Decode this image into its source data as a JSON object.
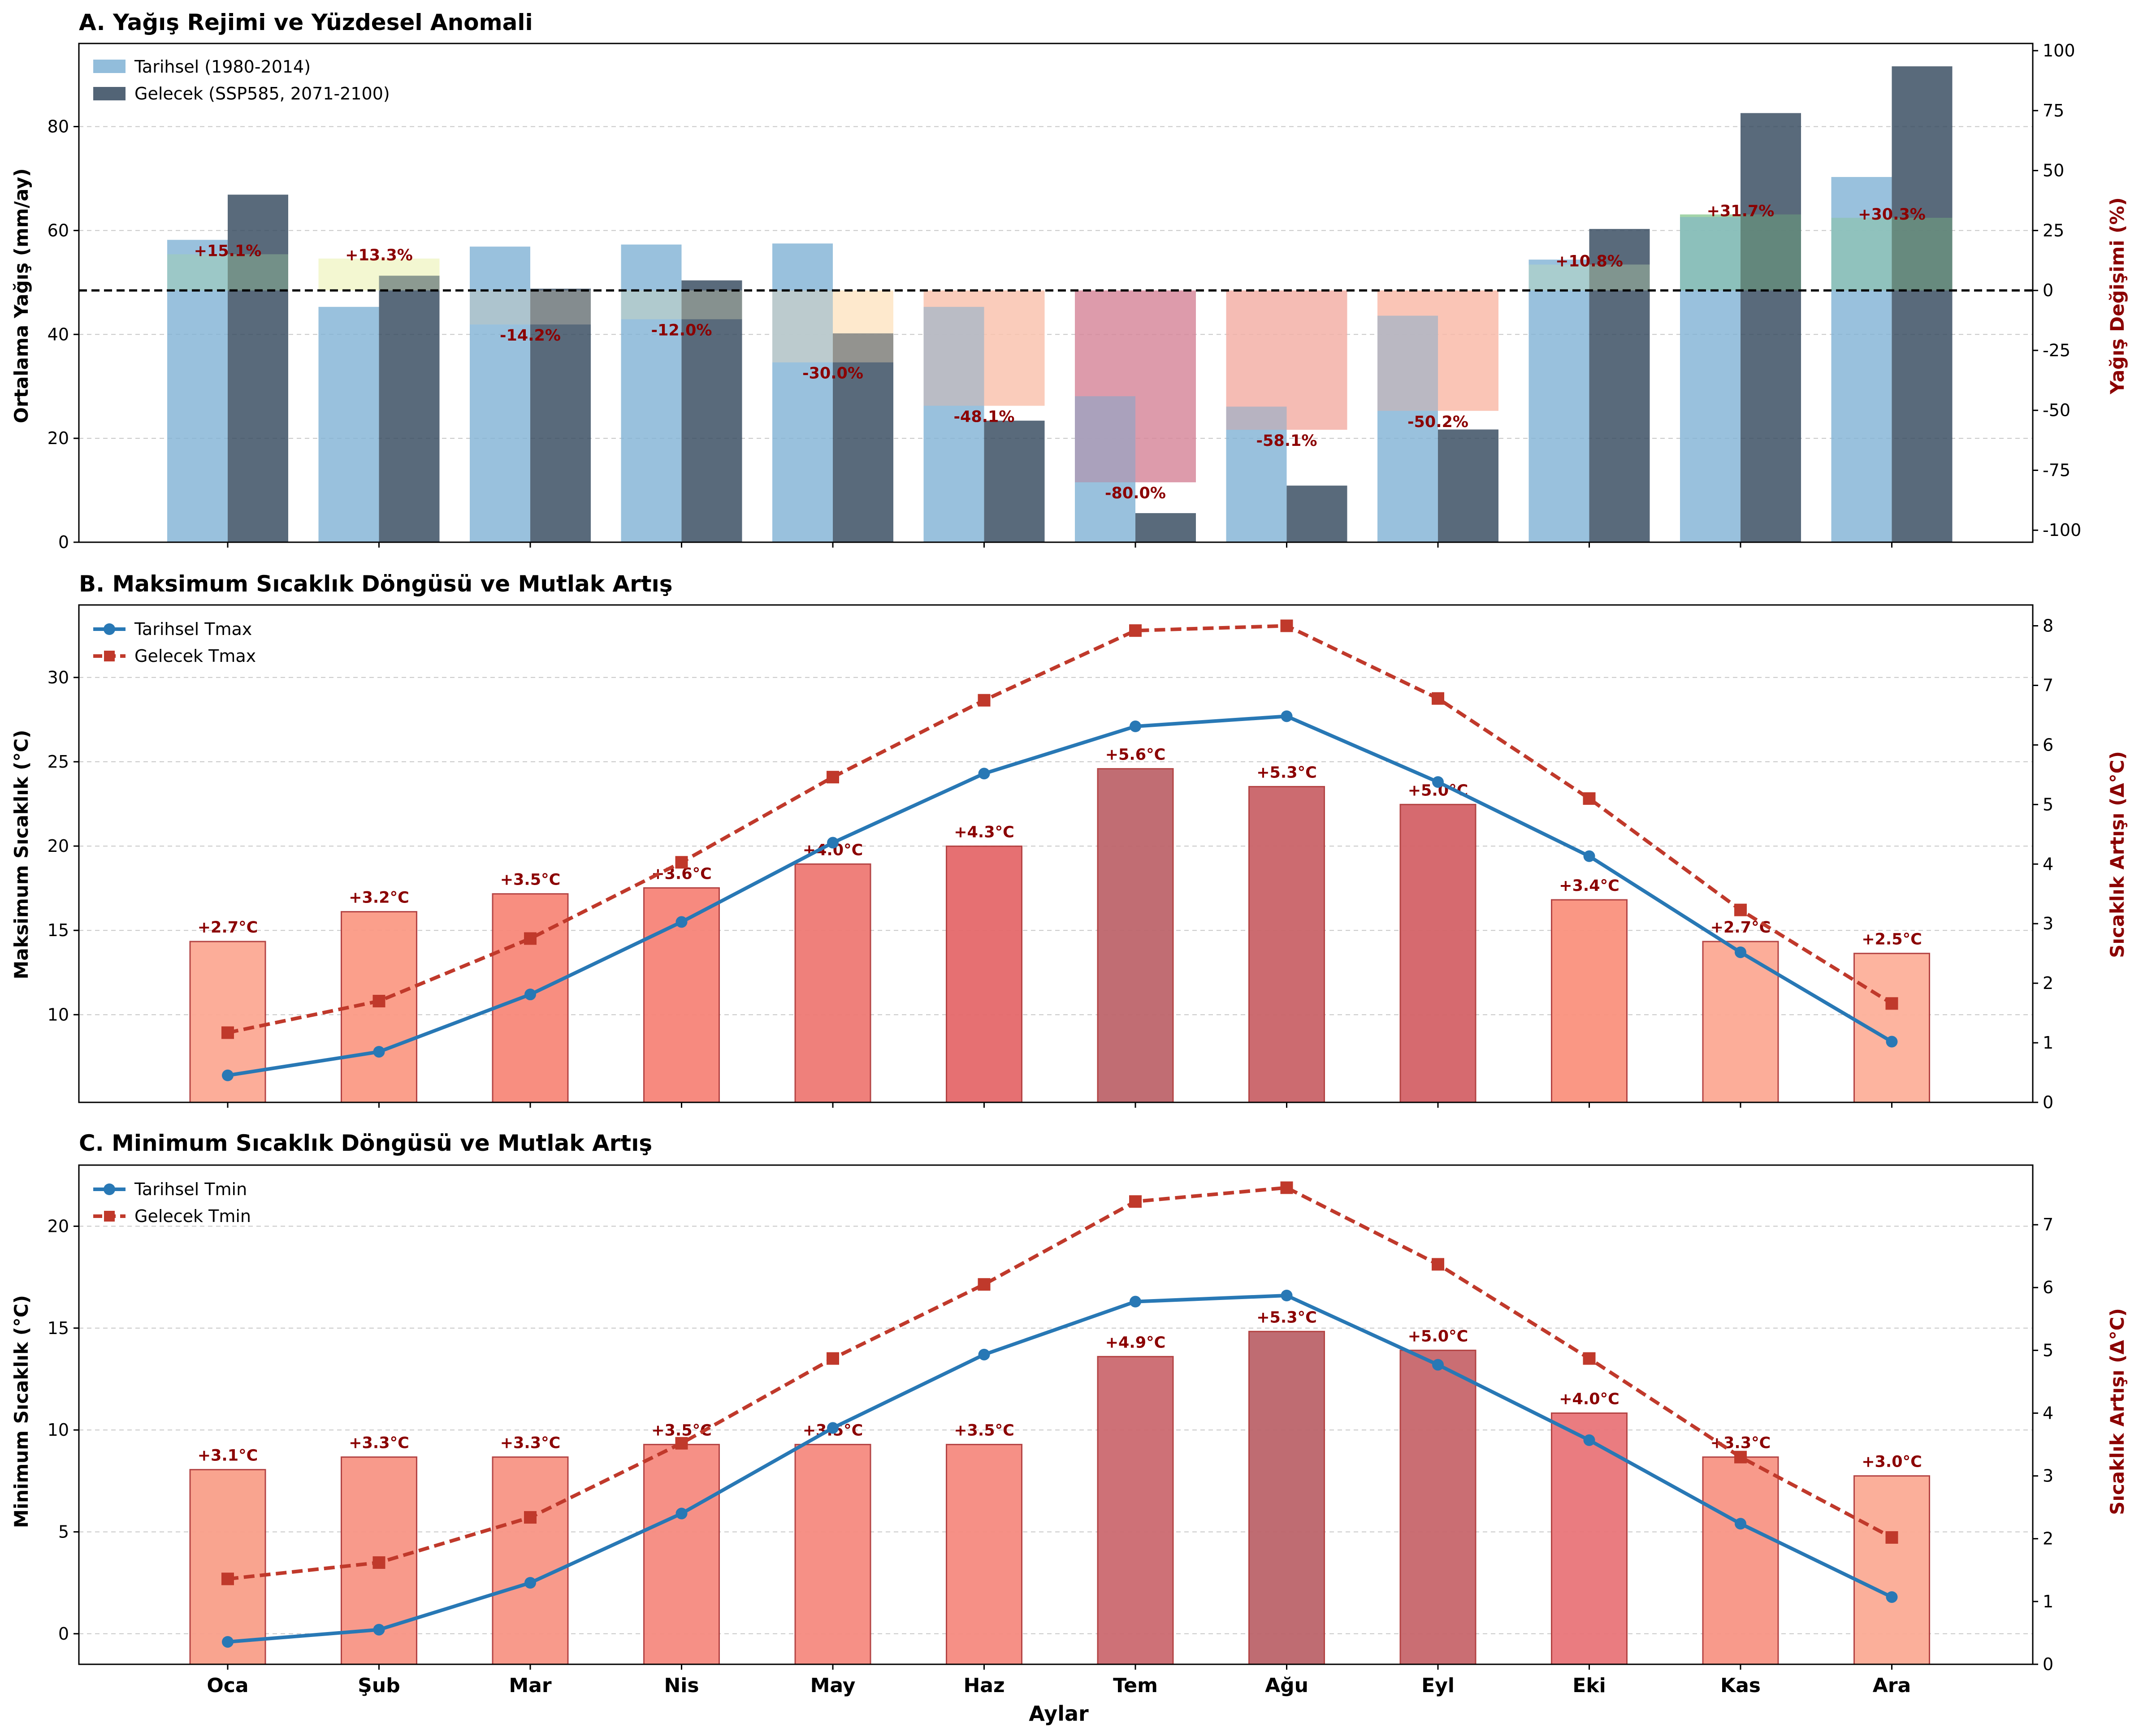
{
  "chart_data": [
    {
      "type": "bar",
      "title": "A. Yağış Rejimi ve Yüzdesel Anomali",
      "ylabel": "Ortalama Yağış (mm/ay)",
      "ylabel_right": "Yağış Değişimi (%)",
      "ylim": [
        0,
        96
      ],
      "ylim_right": [
        -105,
        103
      ],
      "yticks": [
        0,
        20,
        40,
        60,
        80
      ],
      "yticks_right": [
        -100,
        -75,
        -50,
        -25,
        0,
        25,
        50,
        75,
        100
      ],
      "categories": [
        "Oca",
        "Şub",
        "Mar",
        "Nis",
        "May",
        "Haz",
        "Tem",
        "Ağu",
        "Eyl",
        "Eki",
        "Kas",
        "Ara"
      ],
      "series": [
        {
          "name": "Tarihsel (1980-2014)",
          "values": [
            58.2,
            45.3,
            56.9,
            57.3,
            57.5,
            45.3,
            28.1,
            26.1,
            43.6,
            54.4,
            62.6,
            70.3
          ]
        },
        {
          "name": "Gelecek (SSP585, 2071-2100)",
          "values": [
            66.9,
            51.3,
            48.8,
            50.4,
            40.2,
            23.4,
            5.6,
            10.9,
            21.7,
            60.3,
            82.6,
            91.6
          ]
        }
      ],
      "anomaly_pct": [
        15.1,
        13.3,
        -14.2,
        -12.0,
        -30.0,
        -48.1,
        -80.0,
        -58.1,
        -50.2,
        10.8,
        31.7,
        30.3
      ],
      "anomaly_labels": [
        "+15.1%",
        "+13.3%",
        "-14.2%",
        "-12.0%",
        "-30.0%",
        "-48.1%",
        "-80.0%",
        "-58.1%",
        "-50.2%",
        "+10.8%",
        "+31.7%",
        "+30.3%"
      ],
      "anomaly_colors": [
        "#b7dfb4",
        "#f0f6c8",
        "#ddd8c2",
        "#e1e2c4",
        "#fee6c4",
        "#f9c3ae",
        "#d6889b",
        "#f3b0a5",
        "#f8b9a8",
        "#d4ecc4",
        "#92cc98",
        "#9bd09e"
      ],
      "legend": "top-left",
      "grid": "y"
    },
    {
      "type": "line",
      "title": "B. Maksimum Sıcaklık Döngüsü ve Mutlak Artış",
      "ylabel": "Maksimum Sıcaklık (°C)",
      "ylabel_right": "Sıcaklık Artışı (Δ°C)",
      "ylim": [
        4.8,
        34.3
      ],
      "ylim_right": [
        0,
        8.35
      ],
      "yticks": [
        10,
        15,
        20,
        25,
        30
      ],
      "yticks_right": [
        0,
        1,
        2,
        3,
        4,
        5,
        6,
        7,
        8
      ],
      "categories": [
        "Oca",
        "Şub",
        "Mar",
        "Nis",
        "May",
        "Haz",
        "Tem",
        "Ağu",
        "Eyl",
        "Eki",
        "Kas",
        "Ara"
      ],
      "series": [
        {
          "name": "Tarihsel Tmax",
          "values": [
            6.4,
            7.8,
            11.2,
            15.5,
            20.2,
            24.3,
            27.1,
            27.7,
            23.8,
            19.4,
            13.7,
            8.4
          ]
        },
        {
          "name": "Gelecek Tmax",
          "values": [
            1.17,
            1.7,
            2.75,
            4.03,
            5.46,
            6.75,
            7.92,
            8.0,
            6.78,
            5.1,
            3.23,
            1.66
          ]
        }
      ],
      "delta_values": [
        2.7,
        3.2,
        3.5,
        3.6,
        4.0,
        4.3,
        5.6,
        5.3,
        5.0,
        3.4,
        2.7,
        2.5
      ],
      "delta_labels": [
        "+2.7°C",
        "+3.2°C",
        "+3.5°C",
        "+3.6°C",
        "+4.0°C",
        "+4.3°C",
        "+5.6°C",
        "+5.3°C",
        "+5.0°C",
        "+3.4°C",
        "+2.7°C",
        "+2.5°C"
      ],
      "delta_colors": [
        "#fca994",
        "#fb9a85",
        "#f8887a",
        "#f78479",
        "#ef7a74",
        "#e5696b",
        "#be666c",
        "#ca6469",
        "#d46368",
        "#fa927e",
        "#fca994",
        "#fdb19a"
      ],
      "legend": "top-left",
      "grid": "y"
    },
    {
      "type": "line",
      "title": "C. Minimum Sıcaklık Döngüsü ve Mutlak Artış",
      "ylabel": "Minimum Sıcaklık (°C)",
      "ylabel_right": "Sıcaklık Artışı (Δ°C)",
      "ylim": [
        -1.5,
        23.0
      ],
      "ylim_right": [
        0,
        7.95
      ],
      "yticks": [
        0,
        5,
        10,
        15,
        20
      ],
      "yticks_right": [
        0,
        1,
        2,
        3,
        4,
        5,
        6,
        7
      ],
      "categories": [
        "Oca",
        "Şub",
        "Mar",
        "Nis",
        "May",
        "Haz",
        "Tem",
        "Ağu",
        "Eyl",
        "Eki",
        "Kas",
        "Ara"
      ],
      "series": [
        {
          "name": "Tarihsel Tmin",
          "values": [
            -0.4,
            0.2,
            2.5,
            5.9,
            10.1,
            13.7,
            16.3,
            16.6,
            13.2,
            9.5,
            5.4,
            1.8
          ]
        },
        {
          "name": "Gelecek Tmin",
          "values": [
            1.36,
            1.62,
            2.34,
            3.52,
            4.87,
            6.05,
            7.37,
            7.59,
            6.37,
            4.87,
            3.3,
            2.02
          ]
        }
      ],
      "delta_values": [
        3.1,
        3.3,
        3.3,
        3.5,
        3.5,
        3.5,
        4.9,
        5.3,
        5.0,
        4.0,
        3.3,
        3.0
      ],
      "delta_labels": [
        "+3.1°C",
        "+3.3°C",
        "+3.3°C",
        "+3.5°C",
        "+3.5°C",
        "+3.5°C",
        "+4.9°C",
        "+5.3°C",
        "+5.0°C",
        "+4.0°C",
        "+3.3°C",
        "+3.0°C"
      ],
      "delta_colors": [
        "#f9a08a",
        "#f89585",
        "#f89585",
        "#f68b80",
        "#f68b80",
        "#f68b80",
        "#cc6a70",
        "#bc656b",
        "#c8676c",
        "#e9757a",
        "#f89585",
        "#fbab95"
      ],
      "xlabel": "Aylar",
      "legend": "top-left",
      "grid": "y"
    }
  ]
}
